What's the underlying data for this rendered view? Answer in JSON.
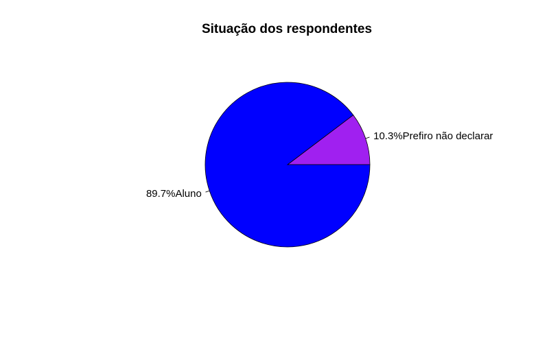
{
  "chart_data": {
    "type": "pie",
    "title": "Situação dos respondentes",
    "slices": [
      {
        "label": "10.3%Prefiro não declarar",
        "value": 10.3,
        "color": "#A020F0"
      },
      {
        "label": "89.7%Aluno",
        "value": 89.7,
        "color": "#0000FF"
      }
    ],
    "start_angle_deg": 0,
    "direction": "counterclockwise",
    "border_color": "#000000",
    "legend": "none"
  }
}
